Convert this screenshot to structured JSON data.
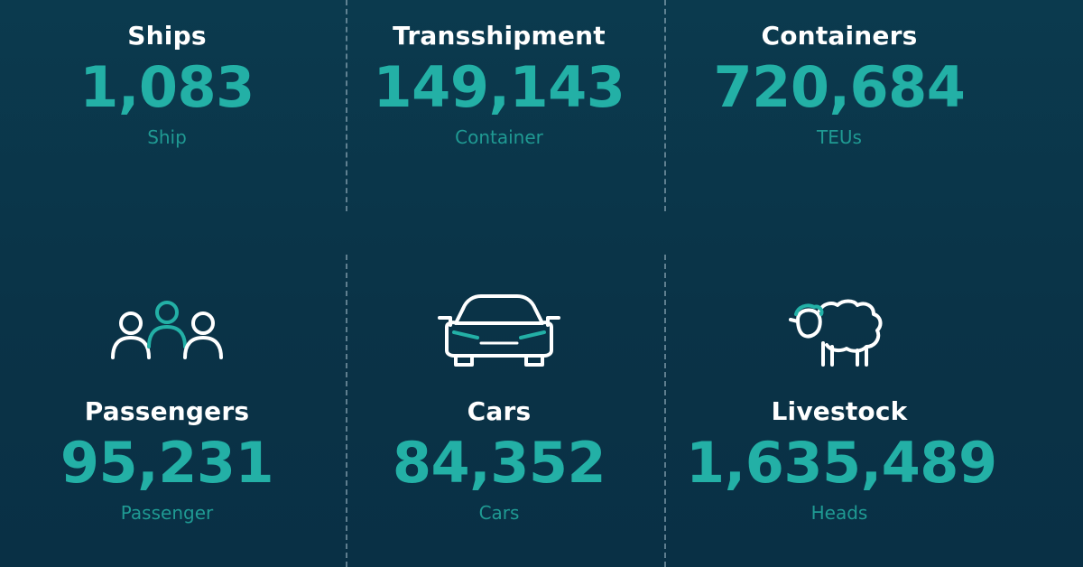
{
  "colors": {
    "accent": "#23b0a6",
    "unit": "#1f9a93",
    "title": "#ffffff",
    "background": "#0a3347",
    "icon_primary": "#ffffff",
    "icon_accent": "#23b0a6"
  },
  "stats": [
    {
      "title": "Ships",
      "value": "1,083",
      "unit": "Ship"
    },
    {
      "title": "Transshipment",
      "value": "149,143",
      "unit": "Container"
    },
    {
      "title": "Containers",
      "value": "720,684",
      "unit": "TEUs"
    },
    {
      "title": "Passengers",
      "value": "95,231",
      "unit": "Passenger",
      "icon": "passengers-icon"
    },
    {
      "title": "Cars",
      "value": "84,352",
      "unit": "Cars",
      "icon": "car-icon"
    },
    {
      "title": "Livestock",
      "value": "1,635,489",
      "unit": "Heads",
      "icon": "sheep-icon"
    }
  ]
}
